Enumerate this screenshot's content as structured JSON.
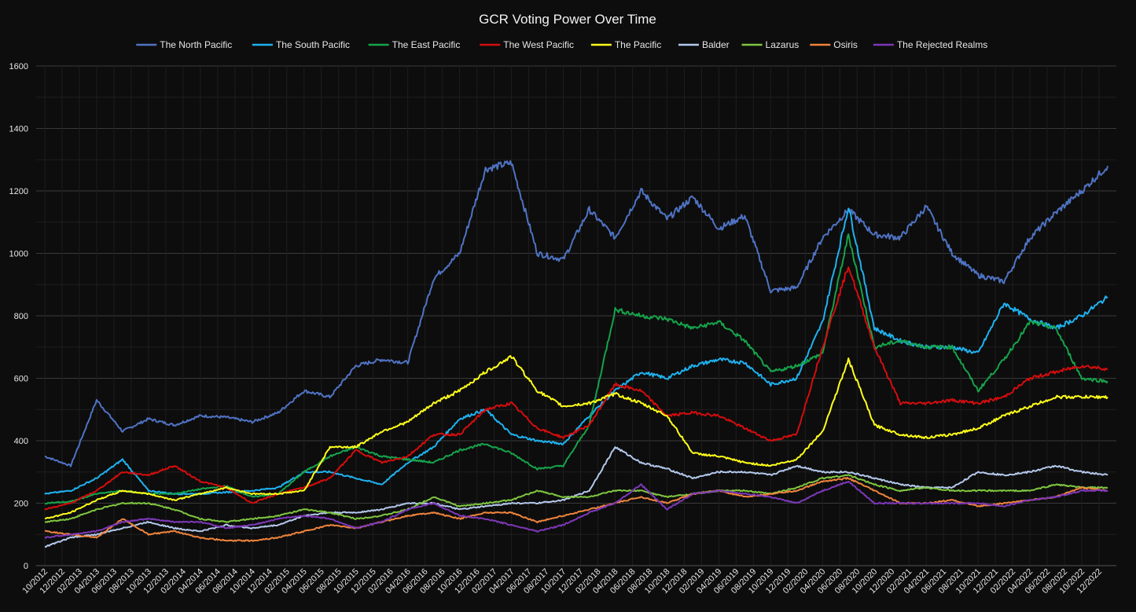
{
  "chart_data": {
    "type": "line",
    "title": "GCR Voting Power Over Time",
    "xlabel": "",
    "ylabel": "",
    "ylim": [
      0,
      1600
    ],
    "y_ticks": [
      0,
      200,
      400,
      600,
      800,
      1000,
      1200,
      1400,
      1600
    ],
    "legend_position": "top",
    "grid": true,
    "x_tick_labels": [
      "10/2012",
      "12/2012",
      "02/2013",
      "04/2013",
      "06/2013",
      "08/2013",
      "10/2013",
      "12/2013",
      "02/2014",
      "04/2014",
      "06/2014",
      "08/2014",
      "10/2014",
      "12/2014",
      "02/2015",
      "04/2015",
      "06/2015",
      "08/2015",
      "10/2015",
      "12/2015",
      "02/2016",
      "04/2016",
      "06/2016",
      "08/2016",
      "10/2016",
      "12/2016",
      "02/2017",
      "04/2017",
      "06/2017",
      "08/2017",
      "10/2017",
      "12/2017",
      "02/2018",
      "04/2018",
      "06/2018",
      "08/2018",
      "10/2018",
      "12/2018",
      "02/2019",
      "04/2019",
      "06/2019",
      "08/2019",
      "10/2019",
      "12/2019",
      "02/2020",
      "04/2020",
      "06/2020",
      "08/2020",
      "10/2020",
      "12/2020",
      "02/2021",
      "04/2021",
      "06/2021",
      "08/2021",
      "10/2021",
      "12/2021",
      "02/2022",
      "04/2022",
      "06/2022",
      "08/2022",
      "10/2022",
      "12/2022"
    ],
    "x": [
      "2012-10",
      "2013-01",
      "2013-04",
      "2013-07",
      "2013-10",
      "2014-01",
      "2014-04",
      "2014-07",
      "2014-10",
      "2015-01",
      "2015-04",
      "2015-07",
      "2015-10",
      "2016-01",
      "2016-04",
      "2016-07",
      "2016-10",
      "2017-01",
      "2017-04",
      "2017-07",
      "2017-10",
      "2018-01",
      "2018-04",
      "2018-07",
      "2018-10",
      "2019-01",
      "2019-04",
      "2019-07",
      "2019-10",
      "2020-01",
      "2020-04",
      "2020-07",
      "2020-10",
      "2021-01",
      "2021-04",
      "2021-07",
      "2021-10",
      "2022-01",
      "2022-04",
      "2022-07",
      "2022-10",
      "2023-01"
    ],
    "series": [
      {
        "name": "The North Pacific",
        "color": "#4f73c3",
        "values": [
          350,
          320,
          530,
          430,
          470,
          450,
          480,
          475,
          460,
          490,
          560,
          540,
          640,
          660,
          650,
          920,
          1000,
          1270,
          1290,
          1000,
          980,
          1140,
          1050,
          1200,
          1110,
          1180,
          1080,
          1120,
          880,
          890,
          1050,
          1140,
          1060,
          1050,
          1150,
          1000,
          930,
          910,
          1050,
          1130,
          1200,
          1280
        ]
      },
      {
        "name": "The South Pacific",
        "color": "#1fb2f0",
        "values": [
          230,
          240,
          280,
          340,
          240,
          230,
          230,
          235,
          240,
          250,
          300,
          300,
          280,
          260,
          330,
          380,
          470,
          500,
          420,
          400,
          390,
          480,
          560,
          620,
          600,
          640,
          660,
          650,
          580,
          600,
          780,
          1150,
          760,
          720,
          700,
          700,
          680,
          840,
          790,
          760,
          800,
          860
        ]
      },
      {
        "name": "The East Pacific",
        "color": "#16a34a",
        "values": [
          200,
          205,
          230,
          240,
          230,
          230,
          245,
          255,
          220,
          230,
          300,
          350,
          380,
          350,
          340,
          330,
          370,
          390,
          360,
          310,
          320,
          450,
          820,
          800,
          790,
          760,
          780,
          720,
          620,
          640,
          680,
          1060,
          700,
          720,
          700,
          700,
          560,
          660,
          780,
          760,
          600,
          590
        ]
      },
      {
        "name": "The West Pacific",
        "color": "#d40d0d",
        "values": [
          180,
          200,
          240,
          300,
          290,
          320,
          270,
          250,
          200,
          230,
          250,
          280,
          370,
          330,
          350,
          420,
          420,
          500,
          520,
          440,
          410,
          450,
          580,
          560,
          480,
          490,
          480,
          440,
          400,
          420,
          700,
          960,
          700,
          520,
          520,
          530,
          520,
          540,
          600,
          620,
          640,
          630
        ]
      },
      {
        "name": "The Pacific",
        "color": "#ffff1a",
        "values": [
          150,
          170,
          210,
          240,
          230,
          210,
          230,
          250,
          230,
          230,
          240,
          380,
          380,
          430,
          460,
          520,
          560,
          620,
          670,
          560,
          510,
          520,
          550,
          520,
          480,
          360,
          350,
          330,
          320,
          340,
          430,
          660,
          450,
          420,
          410,
          420,
          440,
          480,
          510,
          540,
          540,
          540
        ]
      },
      {
        "name": "Balder",
        "color": "#b4c8ec",
        "values": [
          60,
          90,
          100,
          120,
          140,
          120,
          110,
          130,
          120,
          130,
          160,
          170,
          170,
          180,
          200,
          200,
          180,
          190,
          200,
          200,
          210,
          240,
          380,
          330,
          310,
          280,
          300,
          300,
          290,
          320,
          300,
          300,
          280,
          260,
          250,
          250,
          300,
          290,
          300,
          320,
          300,
          290
        ]
      },
      {
        "name": "Lazarus",
        "color": "#7fc640",
        "values": [
          140,
          150,
          180,
          200,
          200,
          180,
          150,
          140,
          150,
          160,
          180,
          170,
          150,
          160,
          180,
          220,
          190,
          200,
          210,
          240,
          220,
          220,
          240,
          240,
          220,
          230,
          240,
          240,
          230,
          250,
          280,
          290,
          260,
          240,
          250,
          240,
          240,
          240,
          240,
          260,
          250,
          250
        ]
      },
      {
        "name": "Osiris",
        "color": "#f0843c",
        "values": [
          110,
          100,
          90,
          150,
          100,
          110,
          90,
          80,
          80,
          90,
          110,
          130,
          120,
          140,
          160,
          170,
          150,
          170,
          170,
          140,
          160,
          180,
          200,
          220,
          200,
          230,
          240,
          220,
          230,
          240,
          270,
          280,
          240,
          200,
          200,
          210,
          190,
          200,
          210,
          220,
          250,
          240
        ]
      },
      {
        "name": "The Rejected Realms",
        "color": "#7d38b8",
        "values": [
          90,
          100,
          110,
          140,
          150,
          140,
          140,
          120,
          130,
          150,
          160,
          150,
          120,
          140,
          180,
          200,
          160,
          150,
          130,
          110,
          130,
          170,
          200,
          260,
          180,
          230,
          240,
          230,
          220,
          200,
          240,
          270,
          200,
          200,
          200,
          200,
          200,
          190,
          210,
          220,
          240,
          240
        ]
      }
    ]
  }
}
